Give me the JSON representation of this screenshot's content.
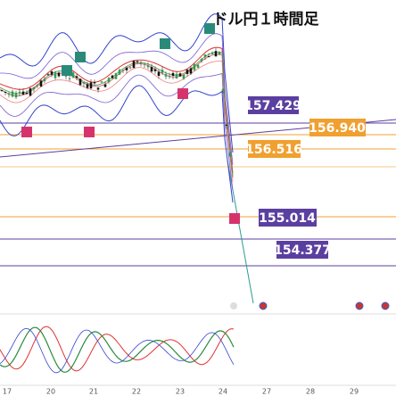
{
  "title": "ドル円１時間足",
  "price_labels": [
    "157.429",
    "156.940",
    "156.516",
    "155.014",
    "154.377"
  ],
  "x_axis_labels": [
    "17",
    "20",
    "21",
    "22",
    "23",
    "24",
    "27",
    "28",
    "29"
  ]
}
